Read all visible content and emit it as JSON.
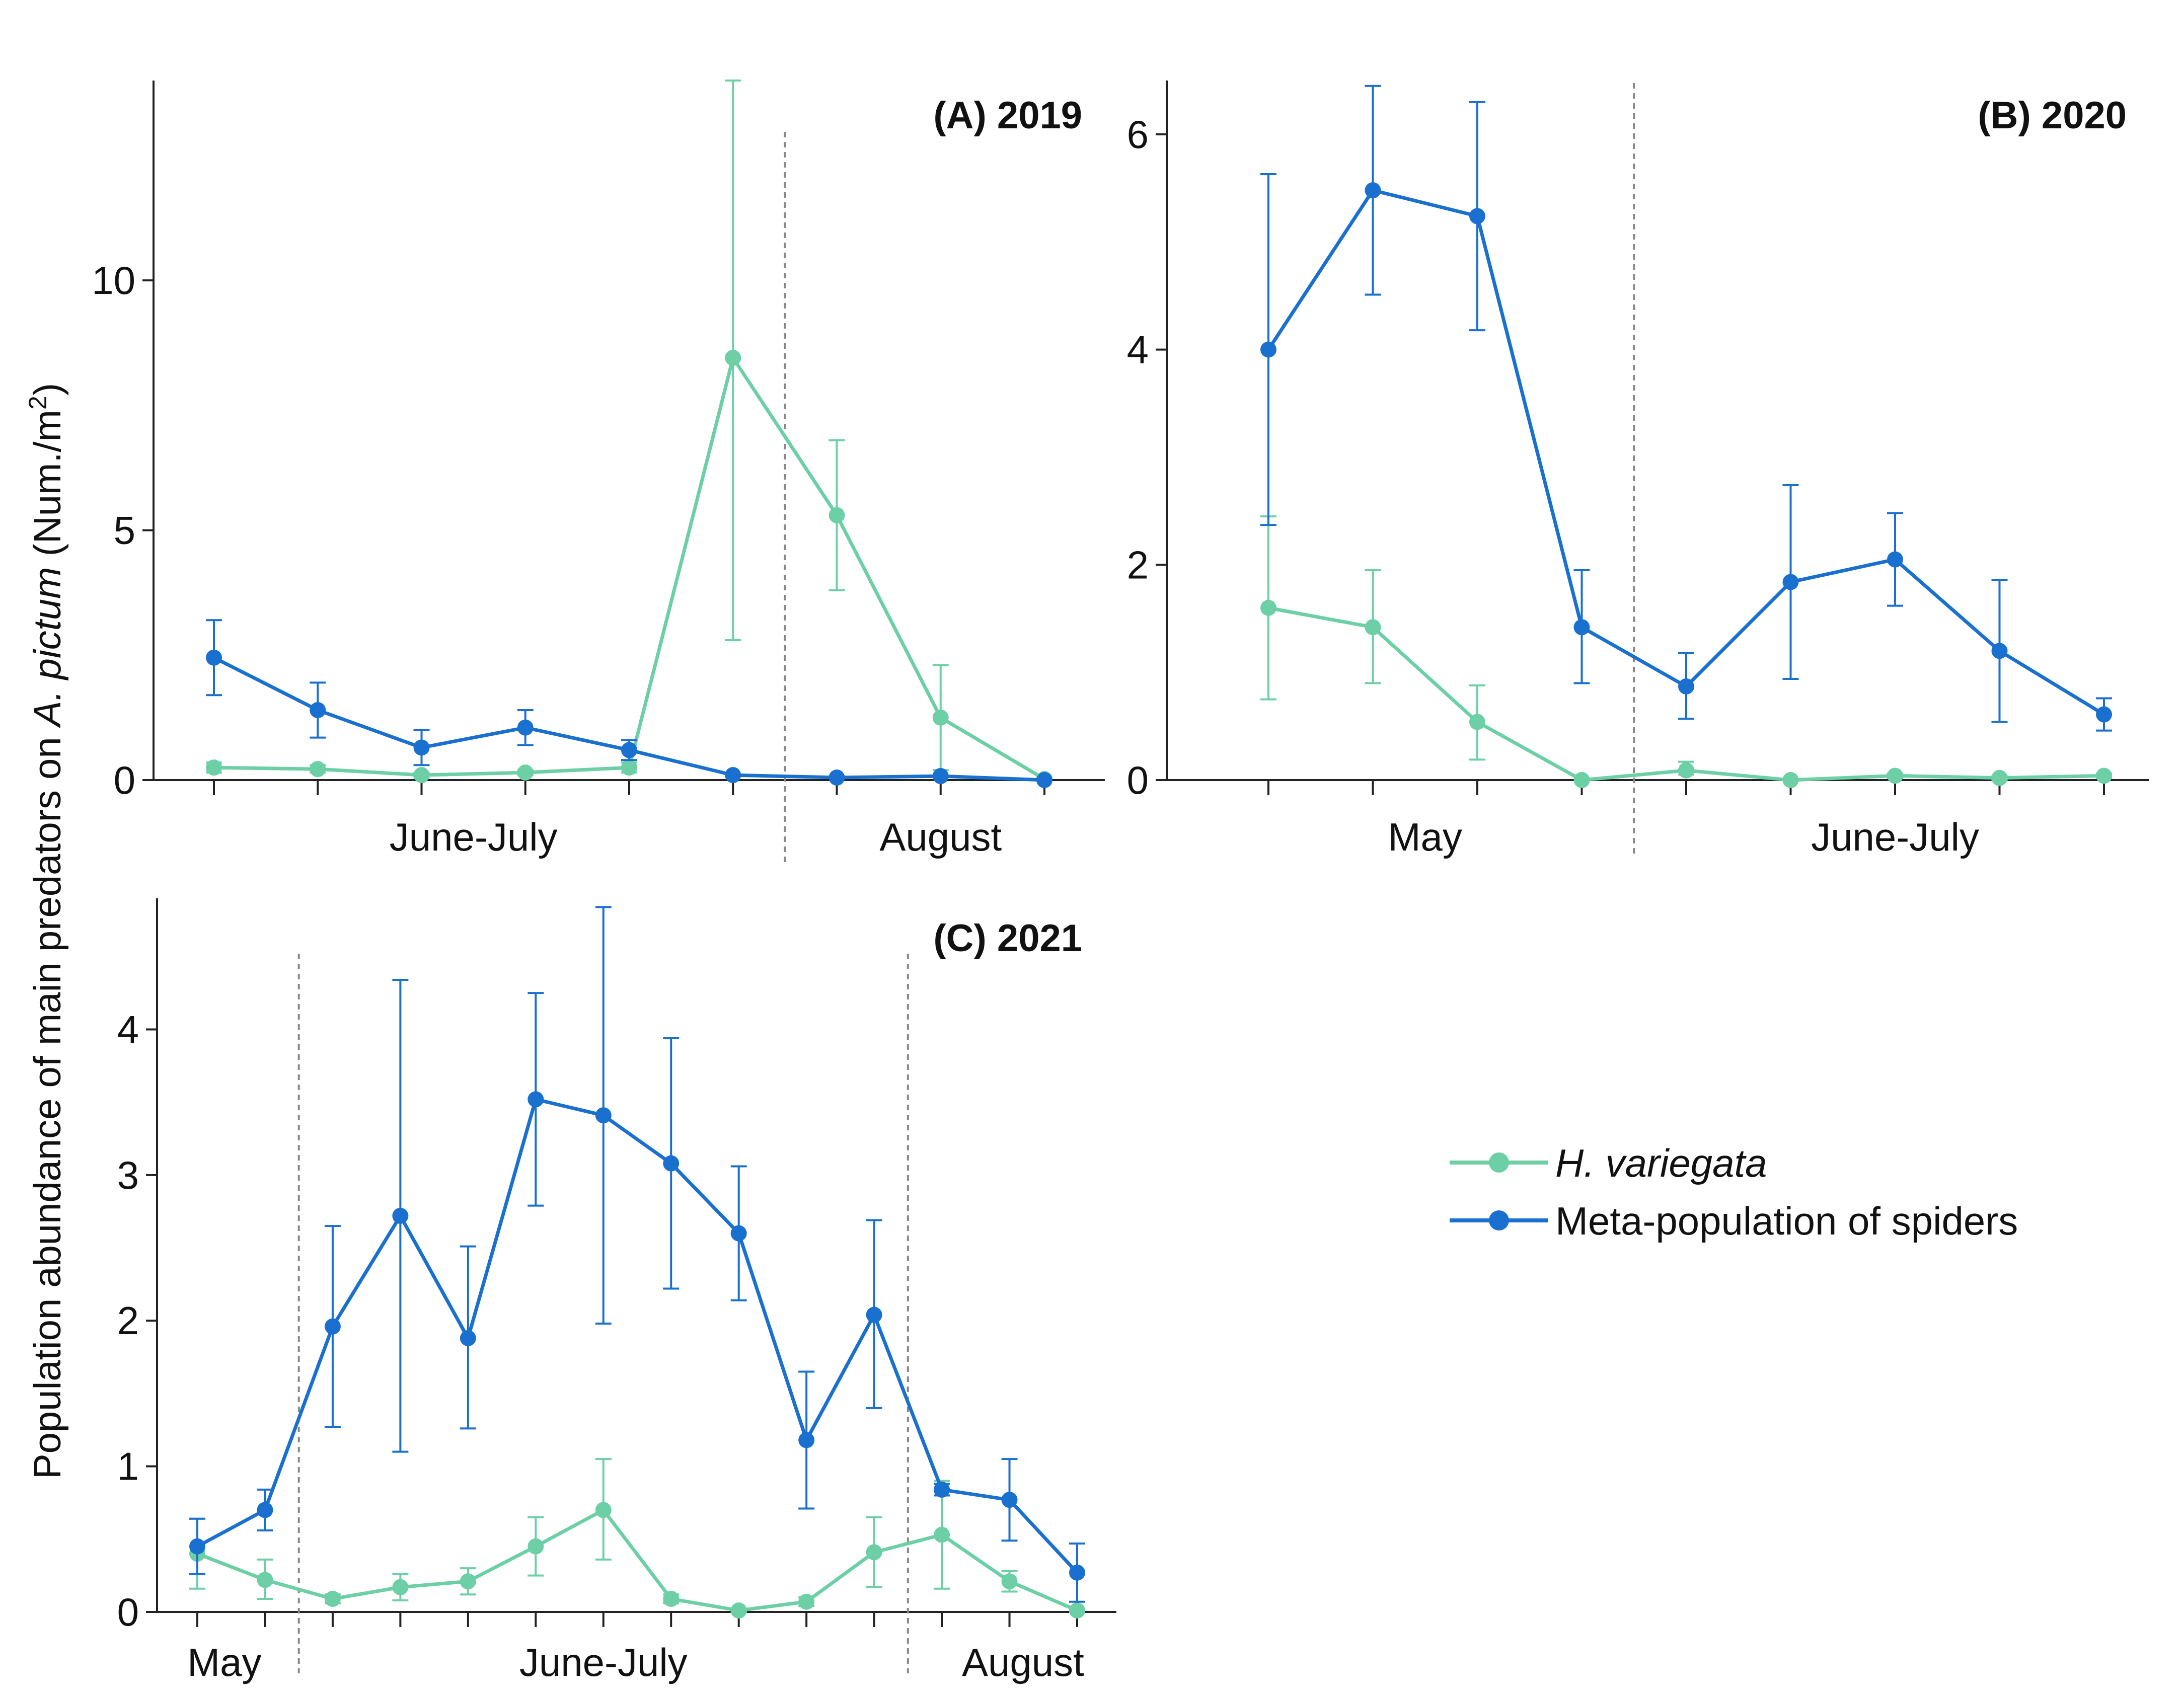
{
  "colors": {
    "h_variegata": "#6dcfa6",
    "spiders": "#1a70cf",
    "axis": "#222222",
    "divider": "#888888"
  },
  "y_axis_label": {
    "prefix": "Population abundance of main predators on ",
    "species": "A. pictum",
    "suffix": " (Num./m",
    "sup": "2",
    "close": ")"
  },
  "legend": {
    "items": [
      {
        "label": "H. variegata",
        "italic": true
      },
      {
        "label": "Meta-population of spiders",
        "italic": false
      }
    ],
    "placement": "right-middle"
  },
  "chart_data": [
    {
      "type": "line",
      "title": "(A) 2019",
      "ylim": [
        0,
        14
      ],
      "yticks": [
        0,
        5,
        10
      ],
      "n_points": 9,
      "dividers": [
        5.5
      ],
      "periods": [
        {
          "label": "June-July",
          "center": 2.5
        },
        {
          "label": "August",
          "center": 7
        }
      ],
      "series": [
        {
          "name": "H. variegata",
          "values": [
            0.25,
            0.22,
            0.1,
            0.15,
            0.25,
            8.45,
            5.3,
            1.25,
            0.02
          ],
          "err_low": [
            0.15,
            0.15,
            0.05,
            0.1,
            0.15,
            2.8,
            3.8,
            0.2,
            0.0
          ],
          "err_high": [
            0.35,
            0.3,
            0.15,
            0.2,
            0.35,
            14.0,
            6.8,
            2.3,
            0.05
          ]
        },
        {
          "name": "Meta-population of spiders",
          "values": [
            2.45,
            1.4,
            0.65,
            1.05,
            0.6,
            0.1,
            0.05,
            0.08,
            0.0
          ],
          "err_low": [
            1.7,
            0.85,
            0.3,
            0.7,
            0.4,
            0.1,
            0.05,
            0.08,
            0.0
          ],
          "err_high": [
            3.2,
            1.95,
            1.0,
            1.4,
            0.8,
            0.1,
            0.05,
            0.08,
            0.0
          ]
        }
      ]
    },
    {
      "type": "line",
      "title": "(B) 2020",
      "ylim": [
        0,
        6.5
      ],
      "yticks": [
        0,
        2,
        4,
        6
      ],
      "n_points": 9,
      "dividers": [
        3.5
      ],
      "periods": [
        {
          "label": "May",
          "center": 1.5
        },
        {
          "label": "June-July",
          "center": 6
        }
      ],
      "series": [
        {
          "name": "H. variegata",
          "values": [
            1.6,
            1.42,
            0.54,
            0.0,
            0.09,
            0.0,
            0.04,
            0.02,
            0.04
          ],
          "err_low": [
            0.75,
            0.9,
            0.19,
            0.0,
            0.05,
            0.0,
            0.02,
            0.0,
            0.02
          ],
          "err_high": [
            2.45,
            1.95,
            0.88,
            0.0,
            0.17,
            0.0,
            0.06,
            0.04,
            0.06
          ]
        },
        {
          "name": "Meta-population of spiders",
          "values": [
            4.0,
            5.48,
            5.24,
            1.42,
            0.87,
            1.84,
            2.05,
            1.2,
            0.61
          ],
          "err_low": [
            2.37,
            4.51,
            4.18,
            0.9,
            0.57,
            0.94,
            1.62,
            0.54,
            0.46
          ],
          "err_high": [
            5.63,
            6.45,
            6.3,
            1.95,
            1.18,
            2.74,
            2.48,
            1.86,
            0.76
          ]
        }
      ]
    },
    {
      "type": "line",
      "title": "(C) 2021",
      "ylim": [
        0,
        4.9
      ],
      "yticks": [
        0,
        1,
        2,
        3,
        4
      ],
      "n_points": 14,
      "dividers": [
        1.5,
        10.5
      ],
      "periods": [
        {
          "label": "May",
          "center": 0.4
        },
        {
          "label": "June-July",
          "center": 6
        },
        {
          "label": "August",
          "center": 12.2
        }
      ],
      "series": [
        {
          "name": "H. variegata",
          "values": [
            0.4,
            0.22,
            0.09,
            0.17,
            0.21,
            0.45,
            0.7,
            0.09,
            0.01,
            0.07,
            0.41,
            0.53,
            0.21,
            0.01
          ],
          "err_low": [
            0.16,
            0.09,
            0.06,
            0.08,
            0.12,
            0.25,
            0.36,
            0.06,
            0.0,
            0.04,
            0.17,
            0.16,
            0.14,
            0.0
          ],
          "err_high": [
            0.64,
            0.36,
            0.12,
            0.26,
            0.3,
            0.65,
            1.05,
            0.12,
            0.02,
            0.1,
            0.65,
            0.9,
            0.28,
            0.02
          ]
        },
        {
          "name": "Meta-population of spiders",
          "values": [
            0.45,
            0.7,
            1.96,
            2.72,
            1.88,
            3.52,
            3.41,
            3.08,
            2.6,
            1.18,
            2.04,
            0.84,
            0.77,
            0.27
          ],
          "err_low": [
            0.26,
            0.56,
            1.27,
            1.1,
            1.26,
            2.79,
            1.98,
            2.22,
            2.14,
            0.71,
            1.4,
            0.8,
            0.49,
            0.07
          ],
          "err_high": [
            0.64,
            0.84,
            2.65,
            4.34,
            2.51,
            4.25,
            4.84,
            3.94,
            3.06,
            1.65,
            2.69,
            0.88,
            1.05,
            0.47
          ]
        }
      ]
    }
  ]
}
